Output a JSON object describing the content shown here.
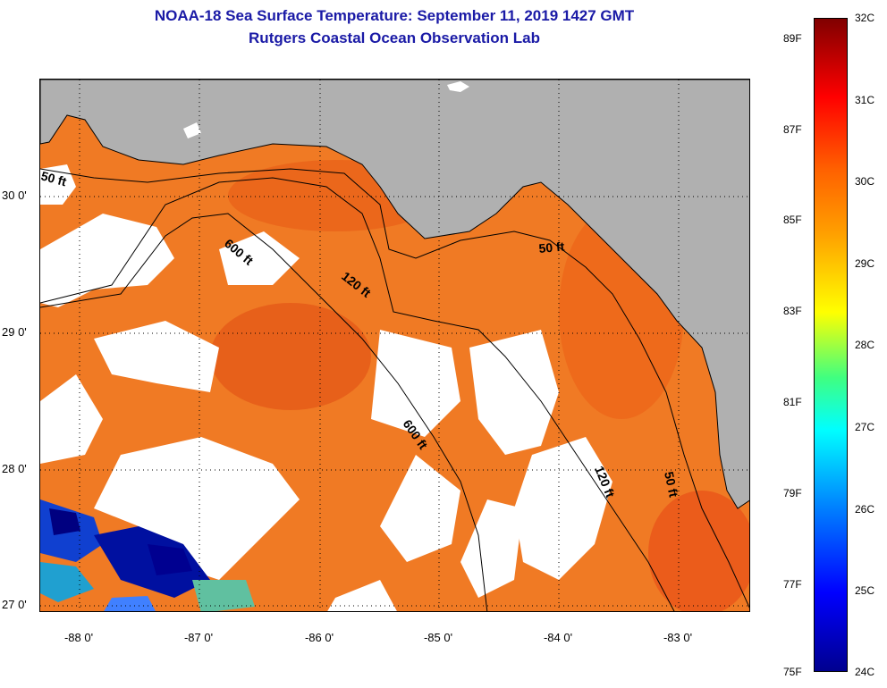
{
  "title_line1": "NOAA-18 Sea Surface Temperature:  September 11, 2019 1427 GMT",
  "title_line2": "Rutgers Coastal Ocean Observation Lab",
  "latitude_labels": [
    "30 0'",
    "29 0'",
    "28 0'",
    "27 0'"
  ],
  "longitude_labels": [
    "-88 0'",
    "-87 0'",
    "-86 0'",
    "-85 0'",
    "-84 0'",
    "-83 0'"
  ],
  "contour_labels": {
    "c50_nw": "50 ft",
    "c600_w": "600 ft",
    "c120_n": "120 ft",
    "c50_ne": "50 ft",
    "c600_center": "600 ft",
    "c120_e": "120 ft",
    "c50_e": "50 ft"
  },
  "colorbar": {
    "fahrenheit": [
      "89F",
      "87F",
      "85F",
      "83F",
      "81F",
      "79F",
      "77F",
      "75F"
    ],
    "celsius": [
      "32C",
      "31C",
      "30C",
      "29C",
      "28C",
      "27C",
      "26C",
      "25C",
      "24C"
    ],
    "colors": [
      "#00008f",
      "#0000ff",
      "#0080ff",
      "#00ffff",
      "#ffff00",
      "#ff6000",
      "#ff0000",
      "#800000"
    ]
  },
  "colors": {
    "title": "#1a1aa6",
    "land": "#b0b0b0",
    "warm_water": "#f07020",
    "hot_water": "#e85a18",
    "cool_water": "#0000c8",
    "cloud": "#ffffff"
  }
}
